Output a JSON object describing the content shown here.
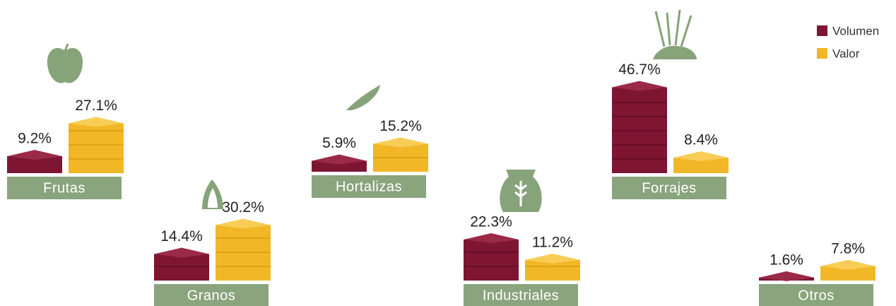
{
  "chart_data": {
    "type": "stacked-slabs",
    "categories": [
      "Frutas",
      "Granos",
      "Hortalizas",
      "Industriales",
      "Forrajes",
      "Otros"
    ],
    "series": [
      {
        "name": "Volumen",
        "color": "#7d1533",
        "values": [
          9.2,
          14.4,
          5.9,
          22.3,
          46.7,
          1.6
        ],
        "value_labels": [
          "9.2%",
          "14.4%",
          "5.9%",
          "22.3%",
          "46.7%",
          "1.6%"
        ]
      },
      {
        "name": "Valor",
        "color": "#f2b727",
        "values": [
          27.1,
          30.2,
          15.2,
          11.2,
          8.4,
          7.8
        ],
        "value_labels": [
          "27.1%",
          "30.2%",
          "15.2%",
          "11.2%",
          "8.4%",
          "7.8%"
        ]
      }
    ],
    "legend": "top-right"
  }
}
